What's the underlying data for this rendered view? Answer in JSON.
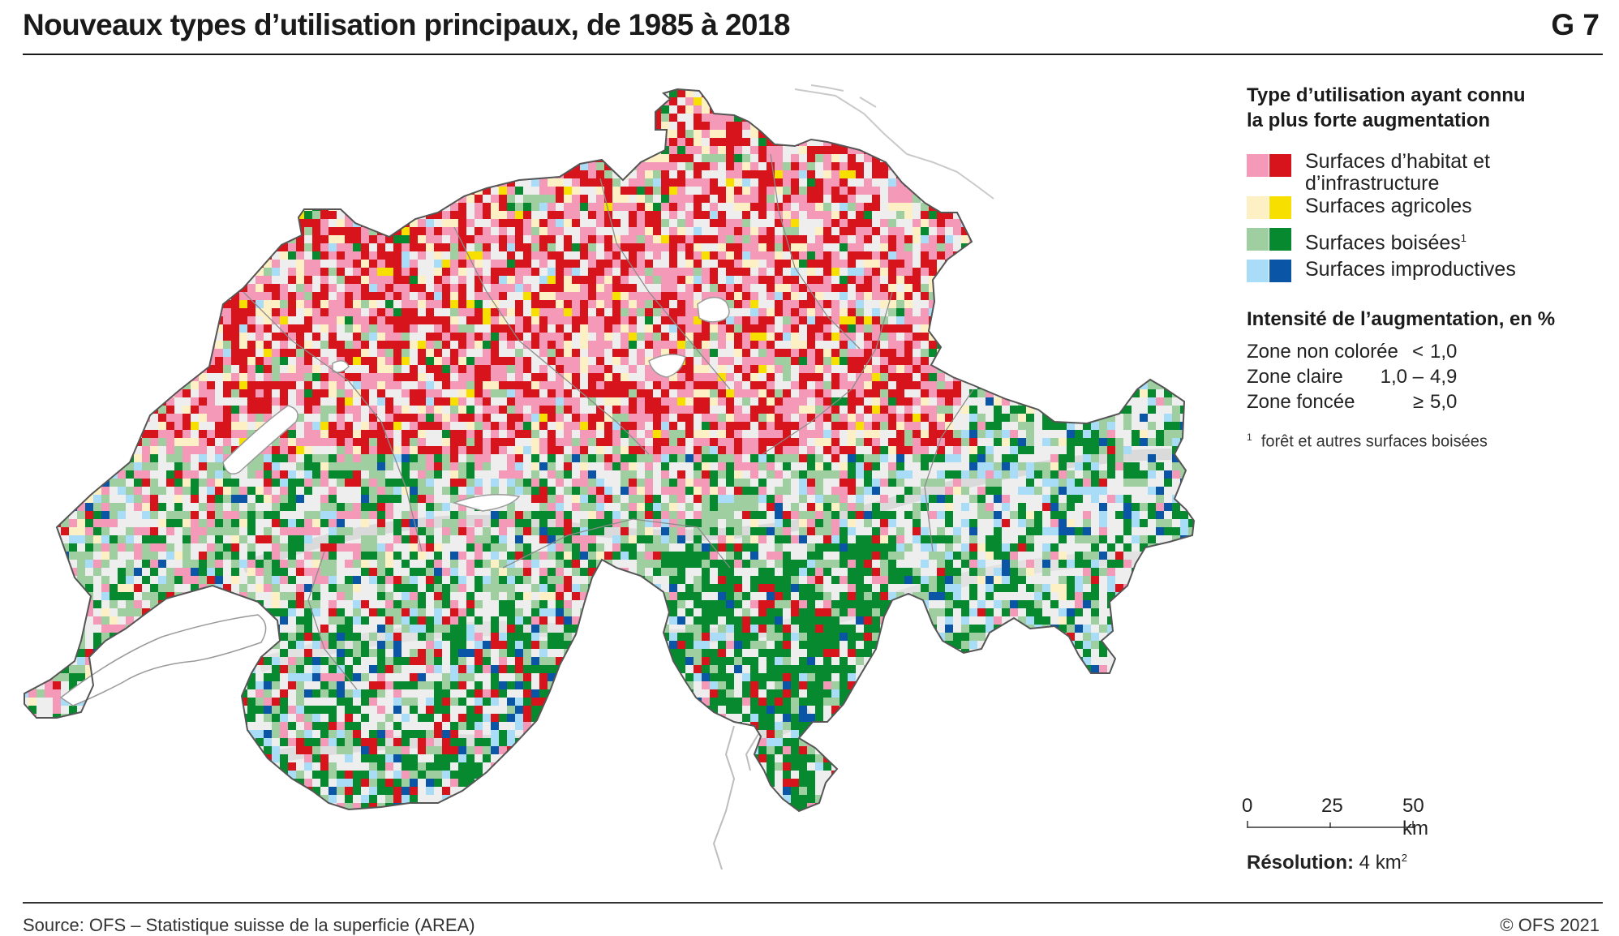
{
  "title": "Nouveaux types d’utilisation principaux, de 1985 à 2018",
  "figure_id": "G 7",
  "legend": {
    "heading_line1": "Type d’utilisation ayant connu",
    "heading_line2": "la plus forte augmentation",
    "items": [
      {
        "label_line1": "Surfaces d’habitat et",
        "label_line2": "d’infrastructure",
        "light": "#f49ab8",
        "dark": "#d7141c"
      },
      {
        "label_line1": "Surfaces agricoles",
        "label_line2": "",
        "light": "#fdf0c4",
        "dark": "#f7df00"
      },
      {
        "label_line1": "Surfaces boisées",
        "label_line2": "",
        "sup": "1",
        "light": "#9fcfa1",
        "dark": "#078a2f"
      },
      {
        "label_line1": "Surfaces improductives",
        "label_line2": "",
        "light": "#a9dcf6",
        "dark": "#0b55a6"
      }
    ],
    "intensity_heading": "Intensité de l’augmentation, en %",
    "intensity": [
      {
        "label": "Zone non colorée",
        "op": "<",
        "value": "1,0"
      },
      {
        "label": "Zone claire",
        "op": "1,0 –",
        "value": "4,9"
      },
      {
        "label": "Zone foncée",
        "op": "≥",
        "value": "5,0"
      }
    ],
    "footnote_marker": "1",
    "footnote": "forêt et autres surfaces boisées"
  },
  "scale_bar": {
    "ticks": [
      "0",
      "25",
      "50 km"
    ]
  },
  "resolution": {
    "label": "Résolution:",
    "value": "4 km",
    "sup": "2"
  },
  "source": "Source: OFS – Statistique suisse de la superficie (AREA)",
  "copyright": "© OFS 2021"
}
